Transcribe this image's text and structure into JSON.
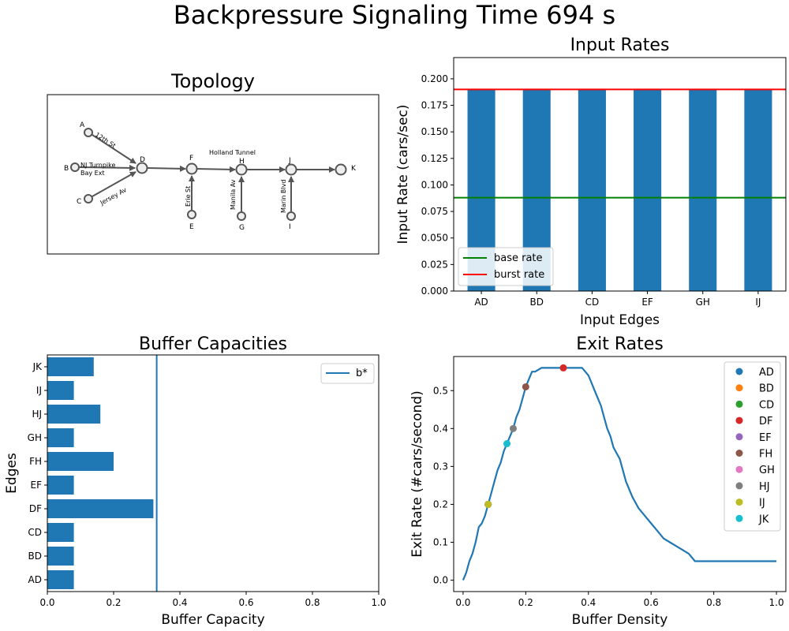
{
  "suptitle": "Backpressure Signaling Time 694 s",
  "topology": {
    "title": "Topology",
    "nodes": [
      "A",
      "B",
      "C",
      "D",
      "E",
      "F",
      "G",
      "H",
      "I",
      "J",
      "K"
    ],
    "street_labels": {
      "st12": "12th St",
      "njturnpike1": "NJ Turnpike",
      "njturnpike2": "Bay Ext",
      "jersey": "Jersey Av",
      "erie": "Erie St",
      "manila": "Manila Av",
      "marin": "Marin Blvd",
      "holland": "Holland Tunnel"
    }
  },
  "chart_data": [
    {
      "type": "bar",
      "title": "Input Rates",
      "xlabel": "Input Edges",
      "ylabel": "Input Rate (cars/sec)",
      "categories": [
        "AD",
        "BD",
        "CD",
        "EF",
        "GH",
        "IJ"
      ],
      "values": [
        0.19,
        0.19,
        0.19,
        0.19,
        0.19,
        0.19
      ],
      "ylim": [
        0,
        0.22
      ],
      "yticks": [
        "0.000",
        "0.025",
        "0.050",
        "0.075",
        "0.100",
        "0.125",
        "0.150",
        "0.175",
        "0.200"
      ],
      "reference_lines": [
        {
          "name": "base rate",
          "value": 0.088,
          "color": "#008000"
        },
        {
          "name": "burst rate",
          "value": 0.19,
          "color": "#ff0000"
        }
      ],
      "bar_color": "#1f77b4",
      "legend": "lower-left"
    },
    {
      "type": "bar",
      "orientation": "horizontal",
      "title": "Buffer Capacities",
      "xlabel": "Buffer Capacity",
      "ylabel": "Edges",
      "categories": [
        "AD",
        "BD",
        "CD",
        "DF",
        "EF",
        "FH",
        "GH",
        "HJ",
        "IJ",
        "JK"
      ],
      "values": [
        0.08,
        0.08,
        0.08,
        0.32,
        0.08,
        0.2,
        0.08,
        0.16,
        0.08,
        0.14
      ],
      "xlim": [
        0,
        1.0
      ],
      "xticks": [
        "0.0",
        "0.2",
        "0.4",
        "0.6",
        "0.8",
        "1.0"
      ],
      "reference_lines": [
        {
          "name": "b*",
          "value": 0.33,
          "color": "#1f77b4"
        }
      ],
      "bar_color": "#1f77b4",
      "legend": "upper-right"
    },
    {
      "type": "line",
      "title": "Exit Rates",
      "xlabel": "Buffer Density",
      "ylabel": "Exit Rate (#cars/second)",
      "xlim": [
        -0.03,
        1.03
      ],
      "ylim": [
        -0.03,
        0.59
      ],
      "xticks": [
        "0.0",
        "0.2",
        "0.4",
        "0.6",
        "0.8",
        "1.0"
      ],
      "yticks": [
        "0.0",
        "0.1",
        "0.2",
        "0.3",
        "0.4",
        "0.5"
      ],
      "curve": {
        "x": [
          0.0,
          0.01,
          0.02,
          0.03,
          0.04,
          0.05,
          0.06,
          0.07,
          0.08,
          0.09,
          0.1,
          0.11,
          0.12,
          0.13,
          0.14,
          0.15,
          0.16,
          0.17,
          0.18,
          0.19,
          0.2,
          0.21,
          0.22,
          0.23,
          0.25,
          0.27,
          0.3,
          0.33,
          0.36,
          0.38,
          0.39,
          0.4,
          0.41,
          0.42,
          0.43,
          0.44,
          0.45,
          0.46,
          0.47,
          0.48,
          0.5,
          0.52,
          0.54,
          0.56,
          0.58,
          0.6,
          0.62,
          0.64,
          0.66,
          0.68,
          0.7,
          0.72,
          0.74,
          0.76,
          0.8,
          0.85,
          0.9,
          0.95,
          1.0
        ],
        "y": [
          0.0,
          0.02,
          0.05,
          0.07,
          0.1,
          0.14,
          0.15,
          0.17,
          0.2,
          0.23,
          0.26,
          0.29,
          0.31,
          0.34,
          0.36,
          0.38,
          0.4,
          0.43,
          0.45,
          0.48,
          0.51,
          0.53,
          0.55,
          0.55,
          0.56,
          0.56,
          0.56,
          0.56,
          0.56,
          0.56,
          0.55,
          0.54,
          0.52,
          0.5,
          0.48,
          0.46,
          0.43,
          0.4,
          0.38,
          0.35,
          0.32,
          0.26,
          0.22,
          0.19,
          0.17,
          0.15,
          0.13,
          0.11,
          0.1,
          0.09,
          0.08,
          0.07,
          0.05,
          0.05,
          0.05,
          0.05,
          0.05,
          0.05,
          0.05
        ],
        "color": "#1f77b4"
      },
      "series": [
        {
          "name": "AD",
          "x": 0.08,
          "y": 0.2,
          "color": "#1f77b4"
        },
        {
          "name": "BD",
          "x": 0.08,
          "y": 0.2,
          "color": "#ff7f0e"
        },
        {
          "name": "CD",
          "x": 0.08,
          "y": 0.2,
          "color": "#2ca02c"
        },
        {
          "name": "DF",
          "x": 0.32,
          "y": 0.56,
          "color": "#d62728"
        },
        {
          "name": "EF",
          "x": 0.08,
          "y": 0.2,
          "color": "#9467bd"
        },
        {
          "name": "FH",
          "x": 0.2,
          "y": 0.51,
          "color": "#8c564b"
        },
        {
          "name": "GH",
          "x": 0.08,
          "y": 0.2,
          "color": "#e377c2"
        },
        {
          "name": "HJ",
          "x": 0.16,
          "y": 0.4,
          "color": "#7f7f7f"
        },
        {
          "name": "IJ",
          "x": 0.08,
          "y": 0.2,
          "color": "#bcbd22"
        },
        {
          "name": "JK",
          "x": 0.14,
          "y": 0.36,
          "color": "#17becf"
        }
      ],
      "legend": "upper-right"
    }
  ]
}
